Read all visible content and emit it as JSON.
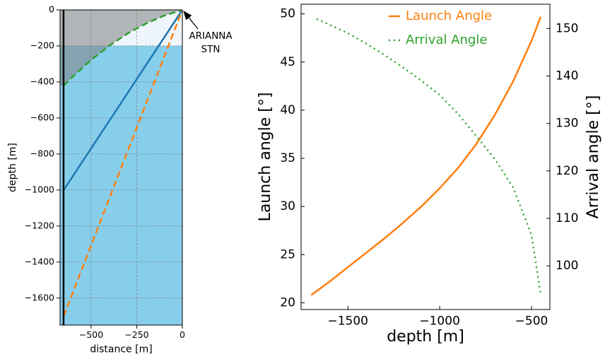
{
  "chart_data": [
    {
      "type": "line",
      "xlabel": "distance [m]",
      "ylabel": "depth [m]",
      "xlim": [
        -670,
        0
      ],
      "ylim": [
        -1750,
        0
      ],
      "xticks": [
        {
          "value": -500,
          "label": "−500"
        },
        {
          "value": -250,
          "label": "−250"
        },
        0
      ],
      "yticks": [
        0,
        {
          "value": -200,
          "label": "−200"
        },
        {
          "value": -400,
          "label": "−400"
        },
        {
          "value": -600,
          "label": "−600"
        },
        {
          "value": -800,
          "label": "−800"
        },
        {
          "value": -1000,
          "label": "−1000"
        },
        {
          "value": -1200,
          "label": "−1200"
        },
        {
          "value": -1400,
          "label": "−1400"
        },
        {
          "value": -1600,
          "label": "−1600"
        }
      ],
      "grid": true,
      "layers": [
        {
          "top": 0,
          "bottom": -200,
          "color": "#eef5fb"
        },
        {
          "top": -200,
          "bottom": -1750,
          "color": "#87ceeb"
        }
      ],
      "series": [
        {
          "color": "#2ca02c",
          "style": "dashed",
          "shade": "#808080",
          "x": [
            -650,
            -600,
            -500,
            -400,
            -300,
            -200,
            -100,
            0
          ],
          "values": [
            -420,
            -370,
            -278,
            -199,
            -131,
            -76,
            -32,
            0
          ]
        },
        {
          "color": "#1f77b4",
          "style": "solid",
          "x": [
            -650,
            0
          ],
          "values": [
            -1000,
            0
          ]
        },
        {
          "color": "#ff7f0e",
          "style": "dashed",
          "x": [
            -650,
            0
          ],
          "values": [
            -1700,
            0
          ]
        },
        {
          "color": "#000000",
          "style": "solid",
          "x": [
            -651,
            -651
          ],
          "values": [
            0,
            -1750
          ]
        }
      ],
      "annotation": {
        "lines": [
          "ARIANNA",
          "STN"
        ],
        "xy": [
          0,
          0
        ]
      }
    },
    {
      "type": "line",
      "xlabel": "depth [m]",
      "ylabel": "Launch angle [°]",
      "y2label": "Arrival angle [°]",
      "xlim": [
        -1755,
        -400
      ],
      "ylim": [
        19.3,
        51.0
      ],
      "y2lim": [
        90.8,
        155.1
      ],
      "xticks": [
        {
          "value": -1500,
          "label": "−1500"
        },
        {
          "value": -1000,
          "label": "−1000"
        },
        {
          "value": -500,
          "label": "−500"
        }
      ],
      "yticks": [
        20,
        25,
        30,
        35,
        40,
        45,
        50
      ],
      "y2ticks": [
        100,
        110,
        120,
        130,
        140,
        150
      ],
      "grid": false,
      "legend": "upper right",
      "series": [
        {
          "name": "Launch Angle",
          "color": "#ff7f0e",
          "style": "solid",
          "axis": "y",
          "x": [
            -1700,
            -1600,
            -1500,
            -1400,
            -1300,
            -1200,
            -1100,
            -1000,
            -900,
            -800,
            -700,
            -600,
            -500,
            -450
          ],
          "values": [
            20.8,
            22.2,
            23.7,
            25.2,
            26.7,
            28.3,
            30.0,
            31.9,
            34.0,
            36.5,
            39.5,
            43.0,
            47.2,
            49.7
          ]
        },
        {
          "name": "Arrival Angle",
          "color": "#2ca02c",
          "style": "dotted",
          "axis": "y2",
          "x": [
            -1670,
            -1600,
            -1500,
            -1400,
            -1300,
            -1200,
            -1100,
            -1000,
            -900,
            -800,
            -700,
            -600,
            -500,
            -450
          ],
          "values": [
            152.0,
            150.8,
            149.0,
            146.8,
            144.4,
            141.8,
            139.0,
            136.0,
            132.0,
            127.3,
            122.5,
            116.5,
            106.5,
            94.0
          ]
        }
      ]
    }
  ]
}
